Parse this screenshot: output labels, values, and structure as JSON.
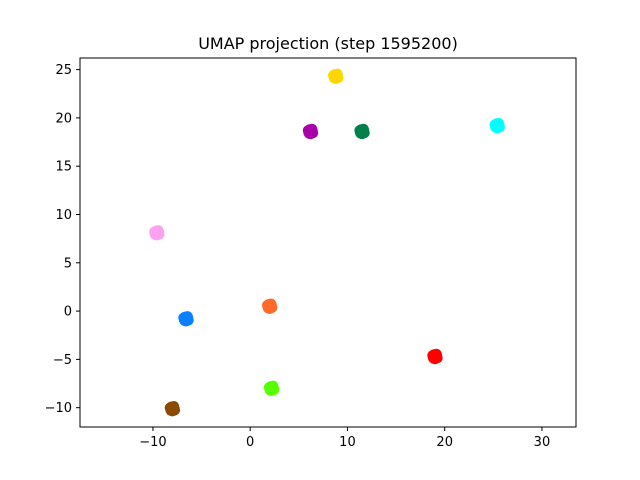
{
  "chart_data": {
    "type": "scatter",
    "title": "UMAP projection (step 1595200)",
    "xlabel": "",
    "ylabel": "",
    "xlim": [
      -17.5,
      33.5
    ],
    "ylim": [
      -12,
      26.2
    ],
    "xticks": [
      -10,
      0,
      10,
      20,
      30
    ],
    "yticks": [
      -10,
      -5,
      0,
      5,
      10,
      15,
      20,
      25
    ],
    "grid": false,
    "legend": "none",
    "clusters": [
      {
        "color": "#FFD700",
        "x": 8.8,
        "y": 24.3
      },
      {
        "color": "#AA00AA",
        "x": 6.2,
        "y": 18.6
      },
      {
        "color": "#00804A",
        "x": 11.5,
        "y": 18.6
      },
      {
        "color": "#00FFFF",
        "x": 25.4,
        "y": 19.2
      },
      {
        "color": "#FFA0F0",
        "x": -9.6,
        "y": 8.1
      },
      {
        "color": "#FF6A2A",
        "x": 2.0,
        "y": 0.5
      },
      {
        "color": "#0A7FFF",
        "x": -6.6,
        "y": -0.8
      },
      {
        "color": "#FF0000",
        "x": 19.0,
        "y": -4.7
      },
      {
        "color": "#55FF00",
        "x": 2.2,
        "y": -8.0
      },
      {
        "color": "#8B4A00",
        "x": -8.0,
        "y": -10.1
      }
    ]
  }
}
